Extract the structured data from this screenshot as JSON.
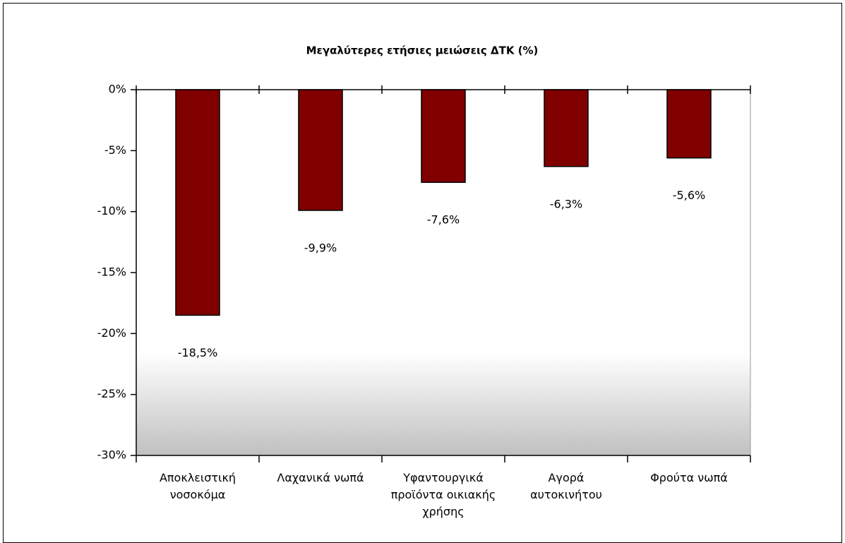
{
  "chart_data": {
    "type": "bar",
    "title": "Μεγαλύτερες ετήσιες μειώσεις ΔΤΚ (%)",
    "categories": [
      "Αποκλειστική νοσοκόμα",
      "Λαχανικά νωπά",
      "Υφαντουργικά προϊόντα οικιακής χρήσης",
      "Αγορά αυτοκινήτου",
      "Φρούτα νωπά"
    ],
    "values": [
      -18.5,
      -9.9,
      -7.6,
      -6.3,
      -5.6
    ],
    "value_labels": [
      "-18,5%",
      "-9,9%",
      "-7,6%",
      "-6,3%",
      "-5,6%"
    ],
    "color": "#800000",
    "ylim": [
      -30,
      0
    ],
    "yticks": [
      {
        "value": 0,
        "label": "0%"
      },
      {
        "value": -5,
        "label": "-5%"
      },
      {
        "value": -10,
        "label": "-10%"
      },
      {
        "value": -15,
        "label": "-15%"
      },
      {
        "value": -20,
        "label": "-20%"
      },
      {
        "value": -25,
        "label": "-25%"
      },
      {
        "value": -30,
        "label": "-30%"
      }
    ],
    "grid": false
  }
}
